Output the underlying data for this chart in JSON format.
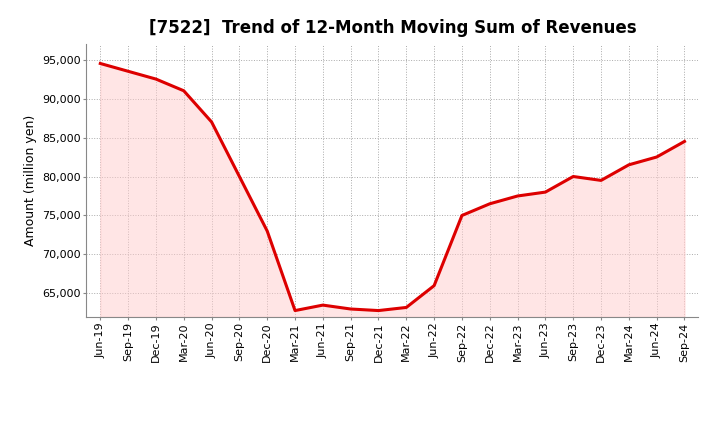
{
  "title": "[7522]  Trend of 12-Month Moving Sum of Revenues",
  "ylabel": "Amount (million yen)",
  "line_color": "#dd0000",
  "background_color": "#ffffff",
  "grid_color": "#aaaaaa",
  "ylim": [
    62000,
    97000
  ],
  "yticks": [
    65000,
    70000,
    75000,
    80000,
    85000,
    90000,
    95000
  ],
  "x_labels": [
    "Jun-19",
    "Sep-19",
    "Dec-19",
    "Mar-20",
    "Jun-20",
    "Sep-20",
    "Dec-20",
    "Mar-21",
    "Jun-21",
    "Sep-21",
    "Dec-21",
    "Mar-22",
    "Jun-22",
    "Sep-22",
    "Dec-22",
    "Mar-23",
    "Jun-23",
    "Sep-23",
    "Dec-23",
    "Mar-24",
    "Jun-24",
    "Sep-24"
  ],
  "values": [
    94500,
    93500,
    92500,
    91000,
    87000,
    80000,
    73000,
    62800,
    63500,
    63000,
    62800,
    63200,
    66000,
    75000,
    76500,
    77500,
    78000,
    80000,
    79500,
    81500,
    82500,
    84500
  ],
  "title_fontsize": 12,
  "ylabel_fontsize": 9,
  "tick_fontsize": 8
}
